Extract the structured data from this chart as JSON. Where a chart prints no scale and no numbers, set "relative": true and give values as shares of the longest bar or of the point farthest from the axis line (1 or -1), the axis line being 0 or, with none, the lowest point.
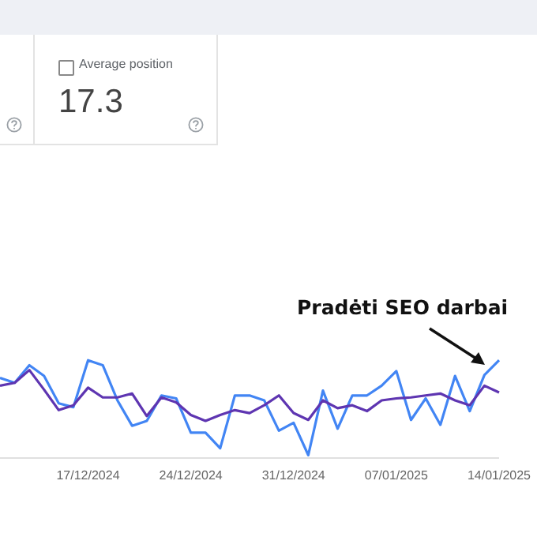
{
  "chart_data": [
    {
      "type": "other",
      "title": "Average position",
      "annotations": [
        "17.3"
      ]
    },
    {
      "type": "line",
      "relative": true,
      "legend": false,
      "marker": "none",
      "annotations": [
        "Pradėti SEO darbai"
      ],
      "categories": [
        null,
        null,
        null,
        null,
        null,
        null,
        "17/12/2024",
        null,
        null,
        null,
        null,
        null,
        null,
        "24/12/2024",
        null,
        null,
        null,
        null,
        null,
        null,
        "31/12/2024",
        null,
        null,
        null,
        null,
        null,
        null,
        "07/01/2025",
        null,
        null,
        null,
        null,
        null,
        null,
        "14/01/2025"
      ],
      "series": [
        {
          "color": "#4285f4",
          "values": [
            0.82,
            0.77,
            0.95,
            0.84,
            0.56,
            0.52,
            1,
            0.95,
            0.59,
            0.33,
            0.38,
            0.64,
            0.61,
            0.26,
            0.26,
            0.1,
            0.64,
            0.64,
            0.59,
            0.28,
            0.36,
            0.03,
            0.69,
            0.3,
            0.64,
            0.64,
            0.74,
            0.89,
            0.39,
            0.61,
            0.34,
            0.84,
            0.48,
            0.85,
            1
          ]
        },
        {
          "color": "#5e35b1",
          "values": [
            0.74,
            0.77,
            0.9,
            0.7,
            0.49,
            0.54,
            0.72,
            0.62,
            0.62,
            0.66,
            0.43,
            0.62,
            0.57,
            0.44,
            0.38,
            0.44,
            0.49,
            0.46,
            0.54,
            0.64,
            0.46,
            0.39,
            0.59,
            0.51,
            0.54,
            0.48,
            0.59,
            0.61,
            0.62,
            0.64,
            0.66,
            0.59,
            0.54,
            0.74,
            0.67
          ]
        }
      ]
    }
  ]
}
